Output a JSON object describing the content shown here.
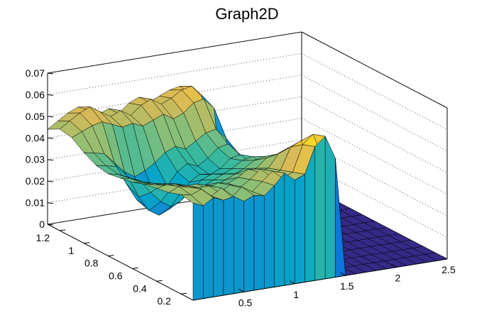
{
  "chart_data": {
    "type": "surface",
    "title": "Graph2D",
    "xlabel": "",
    "ylabel": "",
    "zlabel": "",
    "x_range": [
      0.0,
      2.5
    ],
    "y_range": [
      0.1,
      1.3
    ],
    "z_range": [
      0.0,
      0.07
    ],
    "x_ticks": [
      {
        "value": 0.5,
        "label": "0.5"
      },
      {
        "value": 1.0,
        "label": "1"
      },
      {
        "value": 1.5,
        "label": "1.5"
      },
      {
        "value": 2.0,
        "label": "2"
      },
      {
        "value": 2.5,
        "label": "2.5"
      }
    ],
    "y_ticks": [
      {
        "value": 0.2,
        "label": "0.2"
      },
      {
        "value": 0.4,
        "label": "0.4"
      },
      {
        "value": 0.6,
        "label": "0.6"
      },
      {
        "value": 0.8,
        "label": "0.8"
      },
      {
        "value": 1.0,
        "label": "1"
      },
      {
        "value": 1.2,
        "label": "1.2"
      }
    ],
    "z_ticks": [
      {
        "value": 0.0,
        "label": "0"
      },
      {
        "value": 0.01,
        "label": "0.01"
      },
      {
        "value": 0.02,
        "label": "0.02"
      },
      {
        "value": 0.03,
        "label": "0.03"
      },
      {
        "value": 0.04,
        "label": "0.04"
      },
      {
        "value": 0.05,
        "label": "0.05"
      },
      {
        "value": 0.06,
        "label": "0.06"
      },
      {
        "value": 0.07,
        "label": "0.07"
      }
    ],
    "grid": true,
    "colormap": [
      "#352a87",
      "#0363e1",
      "#1485d4",
      "#06a7c6",
      "#38b99e",
      "#92bf73",
      "#d9ba56",
      "#fcce2e",
      "#f9fb0e"
    ],
    "surface_x": [
      0.0,
      0.1,
      0.2,
      0.3,
      0.4,
      0.5,
      0.6,
      0.7,
      0.8,
      0.9,
      1.0,
      1.1,
      1.2,
      1.3,
      1.4,
      1.5,
      1.6,
      1.7,
      1.8,
      1.9,
      2.0,
      2.1,
      2.2,
      2.3,
      2.4,
      2.5
    ],
    "surface_y": [
      0.1,
      0.2,
      0.3,
      0.4,
      0.5,
      0.6,
      0.7,
      0.8,
      0.9,
      1.0,
      1.1,
      1.2,
      1.3
    ],
    "surface_z": [
      [
        0.045,
        0.043,
        0.046,
        0.044,
        0.045,
        0.042,
        0.044,
        0.043,
        0.047,
        0.052,
        0.048,
        0.05,
        0.062,
        0.066,
        0.055,
        0.0,
        0.0,
        0.0,
        0.0,
        0.0,
        0.0,
        0.0,
        0.0,
        0.0,
        0.0,
        0.0
      ],
      [
        0.046,
        0.045,
        0.047,
        0.043,
        0.046,
        0.041,
        0.045,
        0.042,
        0.046,
        0.05,
        0.046,
        0.048,
        0.06,
        0.064,
        0.052,
        0.0,
        0.0,
        0.0,
        0.0,
        0.0,
        0.0,
        0.0,
        0.0,
        0.0,
        0.0,
        0.0
      ],
      [
        0.044,
        0.046,
        0.045,
        0.044,
        0.044,
        0.04,
        0.043,
        0.041,
        0.044,
        0.048,
        0.044,
        0.046,
        0.056,
        0.058,
        0.048,
        0.0,
        0.0,
        0.0,
        0.0,
        0.0,
        0.0,
        0.0,
        0.0,
        0.0,
        0.0,
        0.0
      ],
      [
        0.043,
        0.044,
        0.043,
        0.042,
        0.042,
        0.039,
        0.041,
        0.04,
        0.042,
        0.045,
        0.043,
        0.044,
        0.05,
        0.052,
        0.045,
        0.0,
        0.0,
        0.0,
        0.0,
        0.0,
        0.0,
        0.0,
        0.0,
        0.0,
        0.0,
        0.0
      ],
      [
        0.042,
        0.041,
        0.04,
        0.04,
        0.038,
        0.036,
        0.037,
        0.036,
        0.038,
        0.04,
        0.039,
        0.041,
        0.045,
        0.046,
        0.04,
        0.0,
        0.0,
        0.0,
        0.0,
        0.0,
        0.0,
        0.0,
        0.0,
        0.0,
        0.0,
        0.0
      ],
      [
        0.04,
        0.039,
        0.038,
        0.037,
        0.035,
        0.033,
        0.034,
        0.033,
        0.035,
        0.037,
        0.036,
        0.038,
        0.041,
        0.042,
        0.037,
        0.0,
        0.0,
        0.0,
        0.0,
        0.0,
        0.0,
        0.0,
        0.0,
        0.0,
        0.0,
        0.0
      ],
      [
        0.039,
        0.038,
        0.036,
        0.03,
        0.025,
        0.022,
        0.024,
        0.028,
        0.032,
        0.034,
        0.033,
        0.035,
        0.038,
        0.039,
        0.035,
        0.0,
        0.0,
        0.0,
        0.0,
        0.0,
        0.0,
        0.0,
        0.0,
        0.0,
        0.0,
        0.0
      ],
      [
        0.038,
        0.037,
        0.035,
        0.025,
        0.018,
        0.015,
        0.017,
        0.022,
        0.028,
        0.031,
        0.03,
        0.032,
        0.036,
        0.037,
        0.033,
        0.0,
        0.0,
        0.0,
        0.0,
        0.0,
        0.0,
        0.0,
        0.0,
        0.0,
        0.0,
        0.0
      ],
      [
        0.039,
        0.038,
        0.037,
        0.028,
        0.02,
        0.016,
        0.018,
        0.024,
        0.03,
        0.033,
        0.031,
        0.034,
        0.038,
        0.039,
        0.034,
        0.0,
        0.0,
        0.0,
        0.0,
        0.0,
        0.0,
        0.0,
        0.0,
        0.0,
        0.0,
        0.0
      ],
      [
        0.042,
        0.041,
        0.04,
        0.035,
        0.03,
        0.027,
        0.029,
        0.032,
        0.036,
        0.038,
        0.036,
        0.039,
        0.042,
        0.043,
        0.038,
        0.0,
        0.0,
        0.0,
        0.0,
        0.0,
        0.0,
        0.0,
        0.0,
        0.0,
        0.0,
        0.0
      ],
      [
        0.046,
        0.048,
        0.05,
        0.051,
        0.049,
        0.047,
        0.048,
        0.046,
        0.048,
        0.05,
        0.047,
        0.049,
        0.053,
        0.054,
        0.049,
        0.0,
        0.0,
        0.0,
        0.0,
        0.0,
        0.0,
        0.0,
        0.0,
        0.0,
        0.0,
        0.0
      ],
      [
        0.047,
        0.05,
        0.053,
        0.055,
        0.052,
        0.049,
        0.051,
        0.048,
        0.052,
        0.054,
        0.051,
        0.053,
        0.056,
        0.057,
        0.052,
        0.0,
        0.0,
        0.0,
        0.0,
        0.0,
        0.0,
        0.0,
        0.0,
        0.0,
        0.0,
        0.0
      ],
      [
        0.044,
        0.047,
        0.05,
        0.052,
        0.05,
        0.047,
        0.049,
        0.046,
        0.05,
        0.052,
        0.049,
        0.051,
        0.053,
        0.054,
        0.05,
        0.0,
        0.0,
        0.0,
        0.0,
        0.0,
        0.0,
        0.0,
        0.0,
        0.0,
        0.0,
        0.0
      ]
    ]
  }
}
